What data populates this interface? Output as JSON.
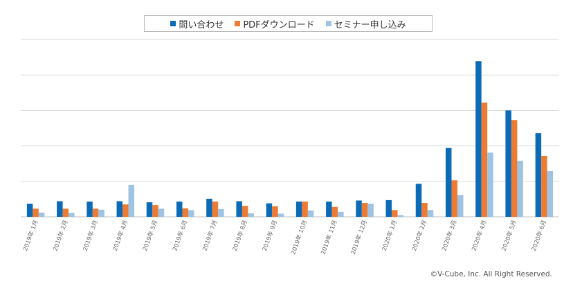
{
  "colors": {
    "inquiry": "#0c6bb7",
    "pdf": "#ec7b34",
    "seminar": "#9fc3e3",
    "grid": "#d9d9d9",
    "axis": "#bfbfbf",
    "tick_text": "#666666"
  },
  "copyright": "©V-Cube, Inc. All Right Reserved.",
  "chart_data": {
    "type": "bar",
    "legend_position": "top",
    "grid": true,
    "ylim": [
      0,
      5
    ],
    "categories": [
      "2019年 1月",
      "2019年 2月",
      "2019年 3月",
      "2019年 4月",
      "2019年 5月",
      "2019年 6月",
      "2019年 7月",
      "2019年 8月",
      "2019年 9月",
      "2019年 10月",
      "2019年 11月",
      "2019年 12月",
      "2020年 1月",
      "2020年 2月",
      "2020年 3月",
      "2020年 4月",
      "2020年 5月",
      "2020年 6月"
    ],
    "series": [
      {
        "name": "問い合わせ",
        "color": "#0c6bb7",
        "values": [
          0.37,
          0.44,
          0.43,
          0.44,
          0.41,
          0.43,
          0.51,
          0.44,
          0.38,
          0.43,
          0.43,
          0.46,
          0.47,
          0.93,
          1.94,
          4.39,
          3.0,
          2.36
        ]
      },
      {
        "name": "PDFダウンロード",
        "color": "#ec7b34",
        "values": [
          0.23,
          0.23,
          0.23,
          0.35,
          0.33,
          0.24,
          0.43,
          0.31,
          0.3,
          0.43,
          0.28,
          0.39,
          0.19,
          0.39,
          1.03,
          3.22,
          2.73,
          1.72
        ]
      },
      {
        "name": "セミナー申し込み",
        "color": "#9fc3e3",
        "values": [
          0.12,
          0.11,
          0.2,
          0.9,
          0.23,
          0.19,
          0.22,
          0.1,
          0.09,
          0.18,
          0.14,
          0.37,
          0.05,
          0.19,
          0.61,
          1.81,
          1.58,
          1.29
        ]
      }
    ]
  }
}
